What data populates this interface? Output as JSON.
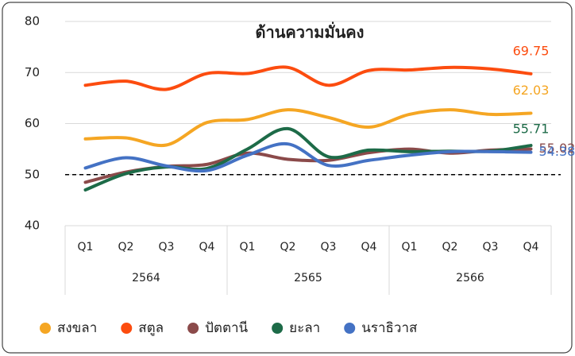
{
  "chart_data": {
    "type": "line",
    "title": "ด้านความมั่นคง",
    "categories": [
      "Q1",
      "Q2",
      "Q3",
      "Q4",
      "Q1",
      "Q2",
      "Q3",
      "Q4",
      "Q1",
      "Q2",
      "Q3",
      "Q4"
    ],
    "category_groups": [
      "2564",
      "2565",
      "2566"
    ],
    "series": [
      {
        "name": "สงขลา",
        "color": "#f5a623",
        "values": [
          57,
          57.2,
          55.8,
          60.2,
          60.8,
          62.7,
          61.2,
          59.3,
          61.8,
          62.7,
          61.8,
          62.03
        ]
      },
      {
        "name": "สตูล",
        "color": "#fc4c0f",
        "values": [
          67.5,
          68.3,
          66.7,
          69.8,
          69.8,
          71,
          67.5,
          70.4,
          70.5,
          71,
          70.7,
          69.75
        ]
      },
      {
        "name": "ปัตตานี",
        "color": "#8b4a4a",
        "values": [
          48.5,
          50.5,
          51.6,
          52,
          54.2,
          53,
          52.8,
          54.3,
          55,
          54.2,
          54.8,
          55.02
        ]
      },
      {
        "name": "ยะลา",
        "color": "#1d6b48",
        "values": [
          47,
          50.2,
          51.5,
          51.2,
          55,
          59,
          53.5,
          54.8,
          54.5,
          54.6,
          54.6,
          55.71
        ]
      },
      {
        "name": "นราธิวาส",
        "color": "#4472c4",
        "values": [
          51.3,
          53.3,
          51.7,
          50.8,
          53.8,
          56,
          51.8,
          52.8,
          53.8,
          54.5,
          54.5,
          54.38
        ]
      }
    ],
    "reference_line": 50,
    "ylim": [
      40,
      80
    ],
    "yticks": [
      40,
      50,
      60,
      70,
      80
    ],
    "grid": true,
    "legend": "bottom"
  }
}
